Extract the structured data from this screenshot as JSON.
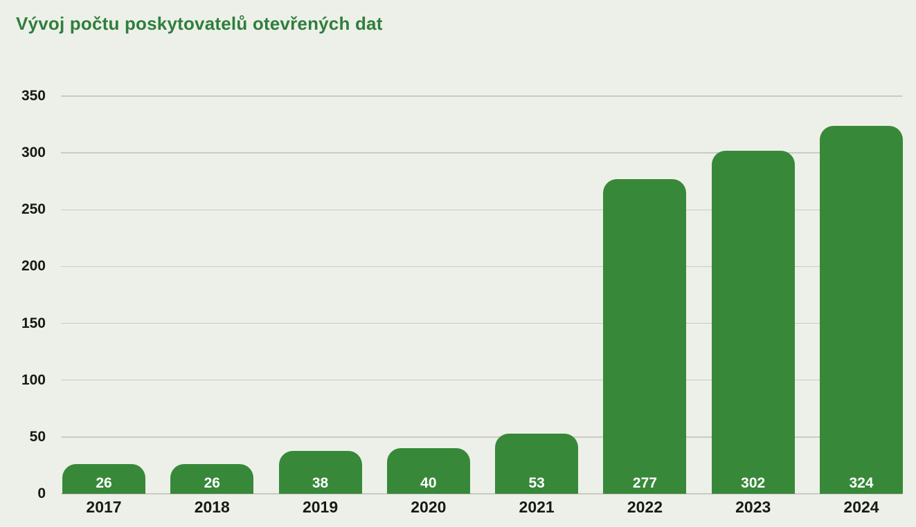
{
  "page": {
    "background": "#edf0e9"
  },
  "chart_data": {
    "type": "bar",
    "title": "Vývoj počtu poskytovatelů otevřených dat",
    "categories": [
      "2017",
      "2018",
      "2019",
      "2020",
      "2021",
      "2022",
      "2023",
      "2024"
    ],
    "values": [
      26,
      26,
      38,
      40,
      53,
      277,
      302,
      324
    ],
    "yticks": [
      0,
      50,
      100,
      150,
      200,
      250,
      300,
      350
    ],
    "ylim": [
      0,
      350
    ],
    "grid": true,
    "legend": "none",
    "xlabel": "",
    "ylabel": "",
    "bar_color": "#388839",
    "title_color": "#2f7e3c",
    "gridline_color": "#c8cac3",
    "axis_text_color": "#181a12",
    "value_label_color": "#ffffff"
  }
}
